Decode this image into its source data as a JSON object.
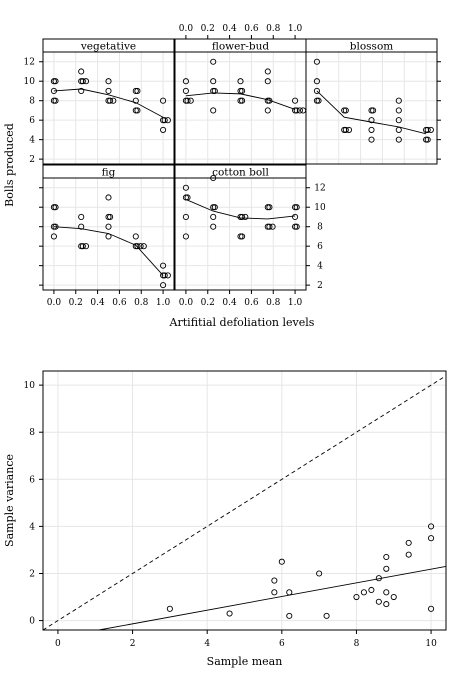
{
  "chart_data": [
    {
      "type": "scatter",
      "ylabel": "Bolls produced",
      "xlabel": "Artifitial defoliation levels",
      "xlim": [
        -0.1,
        1.1
      ],
      "ylim": [
        1.5,
        13
      ],
      "x_ticks": [
        "0.0",
        "0.2",
        "0.4",
        "0.6",
        "0.8",
        "1.0"
      ],
      "y_ticks": [
        "2",
        "4",
        "6",
        "8",
        "10",
        "12"
      ],
      "panels": [
        {
          "name": "vegetative",
          "points": [
            [
              0,
              10
            ],
            [
              0,
              10
            ],
            [
              0,
              9
            ],
            [
              0,
              8
            ],
            [
              0,
              8
            ],
            [
              0.25,
              10
            ],
            [
              0.25,
              9
            ],
            [
              0.25,
              10
            ],
            [
              0.25,
              11
            ],
            [
              0.25,
              10
            ],
            [
              0.5,
              10
            ],
            [
              0.5,
              9
            ],
            [
              0.5,
              8
            ],
            [
              0.5,
              8
            ],
            [
              0.5,
              8
            ],
            [
              0.75,
              9
            ],
            [
              0.75,
              9
            ],
            [
              0.75,
              8
            ],
            [
              0.75,
              7
            ],
            [
              0.75,
              7
            ],
            [
              1,
              8
            ],
            [
              1,
              6
            ],
            [
              1,
              6
            ],
            [
              1,
              6
            ],
            [
              1,
              5
            ]
          ],
          "smooth": [
            [
              0,
              9.0
            ],
            [
              0.25,
              9.2
            ],
            [
              0.5,
              8.6
            ],
            [
              0.75,
              7.8
            ],
            [
              1,
              6.3
            ]
          ]
        },
        {
          "name": "flower-bud",
          "points": [
            [
              0,
              10
            ],
            [
              0,
              9
            ],
            [
              0,
              8
            ],
            [
              0,
              8
            ],
            [
              0,
              8
            ],
            [
              0.25,
              12
            ],
            [
              0.25,
              10
            ],
            [
              0.25,
              9
            ],
            [
              0.25,
              9
            ],
            [
              0.25,
              7
            ],
            [
              0.5,
              10
            ],
            [
              0.5,
              9
            ],
            [
              0.5,
              9
            ],
            [
              0.5,
              8
            ],
            [
              0.5,
              8
            ],
            [
              0.75,
              11
            ],
            [
              0.75,
              10
            ],
            [
              0.75,
              8
            ],
            [
              0.75,
              8
            ],
            [
              0.75,
              7
            ],
            [
              1,
              8
            ],
            [
              1,
              7
            ],
            [
              1,
              7
            ],
            [
              1,
              7
            ],
            [
              1,
              7
            ]
          ],
          "smooth": [
            [
              0,
              8.5
            ],
            [
              0.25,
              8.8
            ],
            [
              0.5,
              8.7
            ],
            [
              0.75,
              8.1
            ],
            [
              1,
              7.1
            ]
          ]
        },
        {
          "name": "blossom",
          "points": [
            [
              0,
              12
            ],
            [
              0,
              10
            ],
            [
              0,
              9
            ],
            [
              0,
              8
            ],
            [
              0,
              8
            ],
            [
              0.25,
              7
            ],
            [
              0.25,
              7
            ],
            [
              0.25,
              5
            ],
            [
              0.25,
              5
            ],
            [
              0.25,
              5
            ],
            [
              0.5,
              7
            ],
            [
              0.5,
              7
            ],
            [
              0.5,
              6
            ],
            [
              0.5,
              5
            ],
            [
              0.5,
              4
            ],
            [
              0.75,
              8
            ],
            [
              0.75,
              7
            ],
            [
              0.75,
              6
            ],
            [
              0.75,
              5
            ],
            [
              0.75,
              4
            ],
            [
              1,
              5
            ],
            [
              1,
              5
            ],
            [
              1,
              5
            ],
            [
              1,
              4
            ],
            [
              1,
              4
            ]
          ],
          "smooth": [
            [
              0,
              9.0
            ],
            [
              0.25,
              6.3
            ],
            [
              0.5,
              5.8
            ],
            [
              0.75,
              5.3
            ],
            [
              1,
              4.6
            ]
          ]
        },
        {
          "name": "fig",
          "points": [
            [
              0,
              10
            ],
            [
              0,
              10
            ],
            [
              0,
              8
            ],
            [
              0,
              8
            ],
            [
              0,
              7
            ],
            [
              0.25,
              9
            ],
            [
              0.25,
              8
            ],
            [
              0.25,
              6
            ],
            [
              0.25,
              6
            ],
            [
              0.25,
              6
            ],
            [
              0.5,
              11
            ],
            [
              0.5,
              9
            ],
            [
              0.5,
              9
            ],
            [
              0.5,
              8
            ],
            [
              0.5,
              7
            ],
            [
              0.75,
              7
            ],
            [
              0.75,
              6
            ],
            [
              0.75,
              6
            ],
            [
              0.75,
              6
            ],
            [
              0.75,
              6
            ],
            [
              1,
              4
            ],
            [
              1,
              3
            ],
            [
              1,
              3
            ],
            [
              1,
              3
            ],
            [
              1,
              2
            ]
          ],
          "smooth": [
            [
              0,
              8.0
            ],
            [
              0.25,
              7.8
            ],
            [
              0.5,
              7.3
            ],
            [
              0.75,
              6.1
            ],
            [
              1,
              3.0
            ]
          ]
        },
        {
          "name": "cotton boll",
          "points": [
            [
              0,
              12
            ],
            [
              0,
              11
            ],
            [
              0,
              11
            ],
            [
              0,
              9
            ],
            [
              0,
              7
            ],
            [
              0.25,
              13
            ],
            [
              0.25,
              10
            ],
            [
              0.25,
              10
            ],
            [
              0.25,
              9
            ],
            [
              0.25,
              8
            ],
            [
              0.5,
              9
            ],
            [
              0.5,
              9
            ],
            [
              0.5,
              9
            ],
            [
              0.5,
              7
            ],
            [
              0.5,
              7
            ],
            [
              0.75,
              10
            ],
            [
              0.75,
              10
            ],
            [
              0.75,
              8
            ],
            [
              0.75,
              8
            ],
            [
              0.75,
              8
            ],
            [
              1,
              10
            ],
            [
              1,
              10
            ],
            [
              1,
              9
            ],
            [
              1,
              8
            ],
            [
              1,
              8
            ]
          ],
          "smooth": [
            [
              0,
              10.8
            ],
            [
              0.25,
              9.6
            ],
            [
              0.5,
              8.9
            ],
            [
              0.75,
              8.8
            ],
            [
              1,
              9.1
            ]
          ]
        }
      ]
    },
    {
      "type": "scatter",
      "xlabel": "Sample mean",
      "ylabel": "Sample variance",
      "xlim": [
        -0.4,
        10.4
      ],
      "ylim": [
        -0.4,
        10.6
      ],
      "x_ticks": [
        "0",
        "2",
        "4",
        "6",
        "8",
        "10"
      ],
      "y_ticks": [
        "0",
        "2",
        "4",
        "6",
        "8",
        "10"
      ],
      "points": [
        [
          3.0,
          0.5
        ],
        [
          4.6,
          0.3
        ],
        [
          5.8,
          1.7
        ],
        [
          5.8,
          1.2
        ],
        [
          6.0,
          2.5
        ],
        [
          6.2,
          1.2
        ],
        [
          6.2,
          0.2
        ],
        [
          7.0,
          2.0
        ],
        [
          7.2,
          0.2
        ],
        [
          8.0,
          1.0
        ],
        [
          8.2,
          1.2
        ],
        [
          8.4,
          1.3
        ],
        [
          8.6,
          1.8
        ],
        [
          8.6,
          0.8
        ],
        [
          8.8,
          2.7
        ],
        [
          8.8,
          2.2
        ],
        [
          8.8,
          1.2
        ],
        [
          8.8,
          0.7
        ],
        [
          9.0,
          1.0
        ],
        [
          9.4,
          3.3
        ],
        [
          9.4,
          2.8
        ],
        [
          10.0,
          4.0
        ],
        [
          10.0,
          3.5
        ],
        [
          10.0,
          0.5
        ]
      ],
      "reference_line": [
        [
          -0.4,
          -0.4
        ],
        [
          10.4,
          10.4
        ]
      ],
      "fit_line": [
        [
          1.1,
          -0.4
        ],
        [
          10.4,
          2.3
        ]
      ]
    }
  ]
}
